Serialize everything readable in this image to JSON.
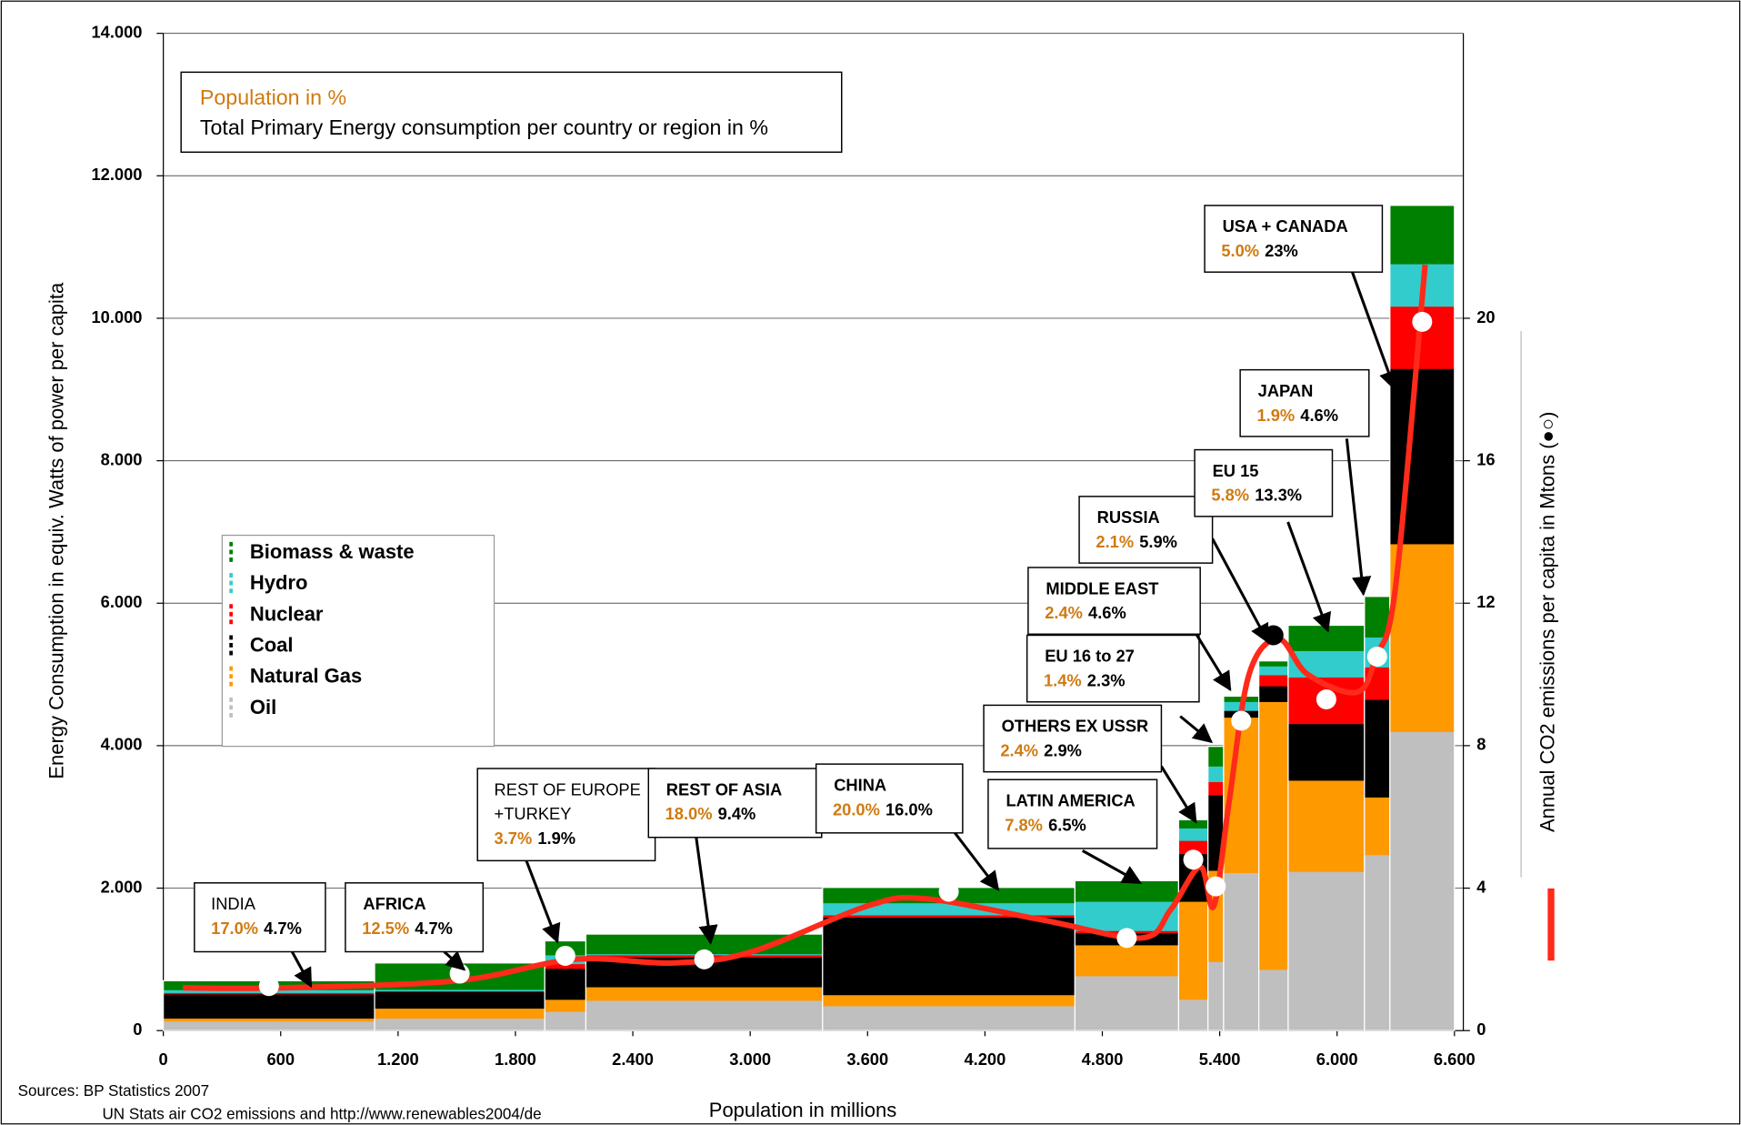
{
  "chart_data": {
    "type": "marimekko",
    "header_box": [
      "Population in %",
      "Total Primary Energy consumption per country or region in %"
    ],
    "x_label": "Population in millions",
    "y_label": "Energy Consumption in equiv. Watts of power per capita",
    "y2_label": "Annual CO2 emissions per capita in Mtons (●○)",
    "sources": [
      "Sources: BP Statistics 2007",
      "UN Stats air CO2 emissions and http://www.renewables2004/de"
    ],
    "xlim": [
      0,
      6600
    ],
    "xticks": [
      0,
      {
        "value": 600,
        "label": "600"
      },
      {
        "value": 1200,
        "label": "1.200"
      },
      {
        "value": 1800,
        "label": "1.800"
      },
      {
        "value": 2400,
        "label": "2.400"
      },
      {
        "value": 3000,
        "label": "3.000"
      },
      {
        "value": 3600,
        "label": "3.600"
      },
      {
        "value": 4200,
        "label": "4.200"
      },
      {
        "value": 4800,
        "label": "4.800"
      },
      {
        "value": 5400,
        "label": "5.400"
      },
      {
        "value": 6000,
        "label": "6.000"
      },
      {
        "value": 6600,
        "label": "6.600"
      }
    ],
    "ylim": [
      0,
      14000
    ],
    "yticks": [
      0,
      {
        "value": 2000,
        "label": "2.000"
      },
      {
        "value": 4000,
        "label": "4.000"
      },
      {
        "value": 6000,
        "label": "6.000"
      },
      {
        "value": 8000,
        "label": "8.000"
      },
      {
        "value": 10000,
        "label": "10.000"
      },
      {
        "value": 12000,
        "label": "12.000"
      },
      {
        "value": 14000,
        "label": "14.000"
      }
    ],
    "y2lim": [
      0,
      28
    ],
    "y2ticks": [
      0,
      4,
      8,
      12,
      16,
      20
    ],
    "grid": true,
    "region_edges": [
      0,
      1080,
      1950,
      2160,
      3370,
      4660,
      5190,
      5340,
      5420,
      5600,
      5750,
      6140,
      6270,
      6600
    ],
    "regions": [
      {
        "name": [
          "INDIA"
        ],
        "population": "17.0%",
        "energy": "4.7%"
      },
      {
        "name": [
          "AFRICA"
        ],
        "population": "12.5%",
        "energy": "4.7%"
      },
      {
        "name": [
          "REST OF EUROPE",
          "+TURKEY"
        ],
        "population": "3.7%",
        "energy": "1.9%"
      },
      {
        "name": [
          "REST OF ASIA"
        ],
        "population": "18.0%",
        "energy": "9.4%"
      },
      {
        "name": [
          "CHINA"
        ],
        "population": "20.0%",
        "energy": "16.0%"
      },
      {
        "name": [
          "LATIN AMERICA"
        ],
        "population": "7.8%",
        "energy": "6.5%"
      },
      {
        "name": [
          "OTHERS EX USSR"
        ],
        "population": "2.4%",
        "energy": "2.9%"
      },
      {
        "name": [
          "EU 16 to 27"
        ],
        "population": "1.4%",
        "energy": "2.3%"
      },
      {
        "name": [
          "MIDDLE EAST"
        ],
        "population": "2.4%",
        "energy": "4.6%"
      },
      {
        "name": [
          "RUSSIA"
        ],
        "population": "2.1%",
        "energy": "5.9%"
      },
      {
        "name": [
          "EU 15"
        ],
        "population": "5.8%",
        "energy": "13.3%"
      },
      {
        "name": [
          "JAPAN"
        ],
        "population": "1.9%",
        "energy": "4.6%"
      },
      {
        "name": [
          "USA + CANADA"
        ],
        "population": "5.0%",
        "energy": "23%"
      }
    ],
    "series": [
      {
        "name": "Oil",
        "color": "#bfbfbf",
        "values": [
          130,
          170,
          265,
          420,
          345,
          765,
          435,
          965,
          2215,
          855,
          2230,
          2465,
          4195
        ]
      },
      {
        "name": "Natural Gas",
        "color": "#ff9900",
        "values": [
          40,
          140,
          170,
          190,
          155,
          435,
          1375,
          1280,
          2180,
          3760,
          1280,
          810,
          2635
        ]
      },
      {
        "name": "Coal",
        "color": "#000000",
        "values": [
          340,
          235,
          435,
          420,
          1090,
          170,
          670,
          1060,
          95,
          220,
          795,
          1370,
          2460
        ]
      },
      {
        "name": "Nuclear",
        "color": "#ff0000",
        "values": [
          20,
          10,
          65,
          30,
          30,
          30,
          185,
          185,
          0,
          155,
          655,
          455,
          875
        ]
      },
      {
        "name": "Hydro",
        "color": "#33cccc",
        "values": [
          40,
          20,
          125,
          15,
          170,
          410,
          175,
          220,
          125,
          125,
          370,
          420,
          595
        ]
      },
      {
        "name": "Biomass & waste",
        "color": "#008000",
        "values": [
          130,
          375,
          200,
          280,
          220,
          295,
          120,
          280,
          80,
          75,
          360,
          575,
          825
        ]
      }
    ],
    "co2": {
      "axis": "y2",
      "values": [
        1.25,
        1.6,
        2.1,
        2.0,
        3.9,
        2.6,
        4.8,
        4.05,
        8.7,
        11.1,
        9.3,
        10.5,
        19.9
      ],
      "colors": [
        "#ffffff",
        "#ffffff",
        "#ffffff",
        "#ffffff",
        "#ffffff",
        "#ffffff",
        "#ffffff",
        "#ffffff",
        "#ffffff",
        "#000000",
        "#ffffff",
        "#ffffff",
        "#ffffff"
      ]
    },
    "co2_line": {
      "axis": "y2",
      "color": "#ff2a1a",
      "x": [
        100,
        600,
        1500,
        2100,
        2600,
        3000,
        3600,
        3900,
        4500,
        5000,
        5150,
        5300,
        5370,
        5450,
        5550,
        5700,
        5850,
        6100,
        6200,
        6300,
        6450
      ],
      "values": [
        1.2,
        1.2,
        1.4,
        2.0,
        1.9,
        2.2,
        3.5,
        3.7,
        3.1,
        2.6,
        3.4,
        4.6,
        3.5,
        6.5,
        10.0,
        11.0,
        10.0,
        9.5,
        10.5,
        12.5,
        21.5
      ]
    }
  }
}
